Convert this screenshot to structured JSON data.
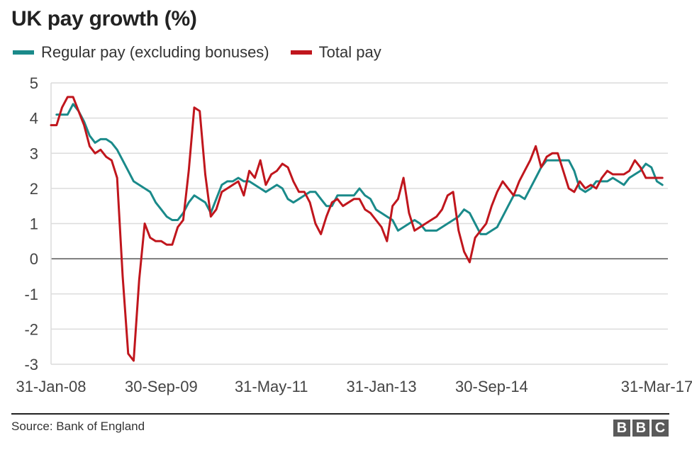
{
  "title": "UK pay growth (%)",
  "source": "Source: Bank of England",
  "logo_letters": [
    "B",
    "B",
    "C"
  ],
  "chart_data": {
    "type": "line",
    "ylim": [
      -3,
      5
    ],
    "yticks": [
      -3,
      -2,
      -1,
      0,
      1,
      2,
      3,
      4,
      5
    ],
    "xlim": [
      0,
      112
    ],
    "xticks": [
      {
        "label": "31-Jan-08",
        "x": 0
      },
      {
        "label": "30-Sep-09",
        "x": 20
      },
      {
        "label": "31-May-11",
        "x": 40
      },
      {
        "label": "31-Jan-13",
        "x": 60
      },
      {
        "label": "30-Sep-14",
        "x": 80
      },
      {
        "label": "31-Mar-17",
        "x": 110
      }
    ],
    "grid": true,
    "legend_position": "top-left",
    "series": [
      {
        "name": "Regular pay (excluding bonuses)",
        "color": "#1a8a8a",
        "x": [
          1,
          3,
          4,
          5,
          6,
          7,
          8,
          9,
          10,
          11,
          12,
          13,
          14,
          15,
          16,
          17,
          18,
          19,
          20,
          21,
          22,
          23,
          24,
          25,
          26,
          27,
          28,
          29,
          30,
          31,
          32,
          33,
          34,
          35,
          36,
          37,
          38,
          39,
          40,
          41,
          42,
          43,
          44,
          45,
          46,
          47,
          48,
          49,
          50,
          51,
          52,
          53,
          54,
          55,
          56,
          57,
          58,
          59,
          60,
          61,
          62,
          63,
          64,
          65,
          66,
          67,
          68,
          69,
          70,
          71,
          72,
          73,
          74,
          75,
          76,
          77,
          78,
          79,
          80,
          81,
          82,
          83,
          84,
          85,
          86,
          87,
          88,
          89,
          90,
          91,
          92,
          93,
          94,
          95,
          96,
          97,
          98,
          99,
          100,
          101,
          102,
          103,
          104,
          105,
          106,
          107,
          108,
          109,
          110,
          111
        ],
        "values": [
          4.1,
          4.1,
          4.4,
          4.2,
          3.9,
          3.5,
          3.3,
          3.4,
          3.4,
          3.3,
          3.1,
          2.8,
          2.5,
          2.2,
          2.1,
          2.0,
          1.9,
          1.6,
          1.4,
          1.2,
          1.1,
          1.1,
          1.3,
          1.6,
          1.8,
          1.7,
          1.6,
          1.3,
          1.7,
          2.1,
          2.2,
          2.2,
          2.3,
          2.2,
          2.2,
          2.1,
          2.0,
          1.9,
          2.0,
          2.1,
          2.0,
          1.7,
          1.6,
          1.7,
          1.8,
          1.9,
          1.9,
          1.7,
          1.5,
          1.5,
          1.8,
          1.8,
          1.8,
          1.8,
          2.0,
          1.8,
          1.7,
          1.4,
          1.3,
          1.2,
          1.1,
          0.8,
          0.9,
          1.0,
          1.1,
          1.0,
          0.8,
          0.8,
          0.8,
          0.9,
          1.0,
          1.1,
          1.2,
          1.4,
          1.3,
          1.0,
          0.7,
          0.7,
          0.8,
          0.9,
          1.2,
          1.5,
          1.8,
          1.8,
          1.7,
          2.0,
          2.3,
          2.6,
          2.8,
          2.8,
          2.8,
          2.8,
          2.8,
          2.5,
          2.0,
          1.9,
          2.0,
          2.2,
          2.2,
          2.2,
          2.3,
          2.2,
          2.1,
          2.3,
          2.4,
          2.5,
          2.7,
          2.6,
          2.2,
          2.1
        ]
      },
      {
        "name": "Total pay",
        "color": "#c0161d",
        "x": [
          0,
          1,
          2,
          3,
          4,
          5,
          6,
          7,
          8,
          9,
          10,
          11,
          12,
          13,
          14,
          15,
          16,
          17,
          18,
          19,
          20,
          21,
          22,
          23,
          24,
          25,
          26,
          27,
          28,
          29,
          30,
          31,
          32,
          33,
          34,
          35,
          36,
          37,
          38,
          39,
          40,
          41,
          42,
          43,
          44,
          45,
          46,
          47,
          48,
          49,
          50,
          51,
          52,
          53,
          54,
          55,
          56,
          57,
          58,
          59,
          60,
          61,
          62,
          63,
          64,
          65,
          66,
          67,
          68,
          69,
          70,
          71,
          72,
          73,
          74,
          75,
          76,
          77,
          78,
          79,
          80,
          81,
          82,
          83,
          84,
          85,
          86,
          87,
          88,
          89,
          90,
          91,
          92,
          93,
          94,
          95,
          96,
          97,
          98,
          99,
          100,
          101,
          102,
          103,
          104,
          105,
          106,
          107,
          108,
          109,
          110,
          111
        ],
        "values": [
          3.8,
          3.8,
          4.3,
          4.6,
          4.6,
          4.2,
          3.8,
          3.2,
          3.0,
          3.1,
          2.9,
          2.8,
          2.3,
          -0.5,
          -2.7,
          -2.9,
          -0.6,
          1.0,
          0.6,
          0.5,
          0.5,
          0.4,
          0.4,
          0.9,
          1.1,
          2.5,
          4.3,
          4.2,
          2.4,
          1.2,
          1.4,
          1.9,
          2.0,
          2.1,
          2.2,
          1.8,
          2.5,
          2.3,
          2.8,
          2.1,
          2.4,
          2.5,
          2.7,
          2.6,
          2.2,
          1.9,
          1.9,
          1.6,
          1.0,
          0.7,
          1.2,
          1.6,
          1.7,
          1.5,
          1.6,
          1.7,
          1.7,
          1.4,
          1.3,
          1.1,
          0.9,
          0.5,
          1.5,
          1.7,
          2.3,
          1.3,
          0.8,
          0.9,
          1.0,
          1.1,
          1.2,
          1.4,
          1.8,
          1.9,
          0.8,
          0.2,
          -0.1,
          0.6,
          0.8,
          1.0,
          1.5,
          1.9,
          2.2,
          2.0,
          1.8,
          2.2,
          2.5,
          2.8,
          3.2,
          2.6,
          2.9,
          3.0,
          3.0,
          2.5,
          2.0,
          1.9,
          2.2,
          2.0,
          2.1,
          2.0,
          2.3,
          2.5,
          2.4,
          2.4,
          2.4,
          2.5,
          2.8,
          2.6,
          2.3,
          2.3,
          2.3,
          2.3
        ]
      }
    ]
  }
}
